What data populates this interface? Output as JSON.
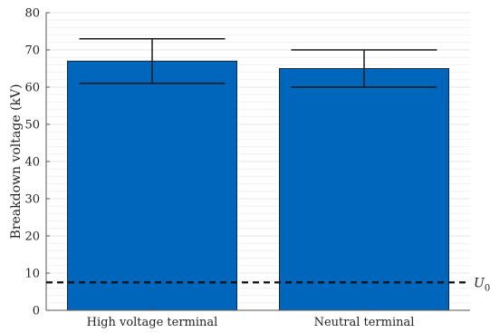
{
  "chart_data": {
    "type": "bar",
    "categories": [
      "High voltage terminal",
      "Neutral terminal"
    ],
    "values": [
      67,
      65
    ],
    "error_low": [
      61,
      60
    ],
    "error_high": [
      73,
      70
    ],
    "ylabel": "Breakdown voltage (kV)",
    "xlabel": "",
    "ylim": [
      0,
      80
    ],
    "yticks": [
      "0",
      "10",
      "20",
      "30",
      "40",
      "50",
      "60",
      "70",
      "80"
    ],
    "grid": true,
    "minor_grid": true,
    "reference_line": {
      "value": 7.5,
      "style": "dashed",
      "label": "U",
      "label_sub": "0"
    },
    "colors": {
      "bar": "#0066BB",
      "bar_edge": "#1a1a1a",
      "error_bar": "#1a1a1a",
      "grid": "#e6e6e6",
      "axis": "#555555"
    }
  }
}
